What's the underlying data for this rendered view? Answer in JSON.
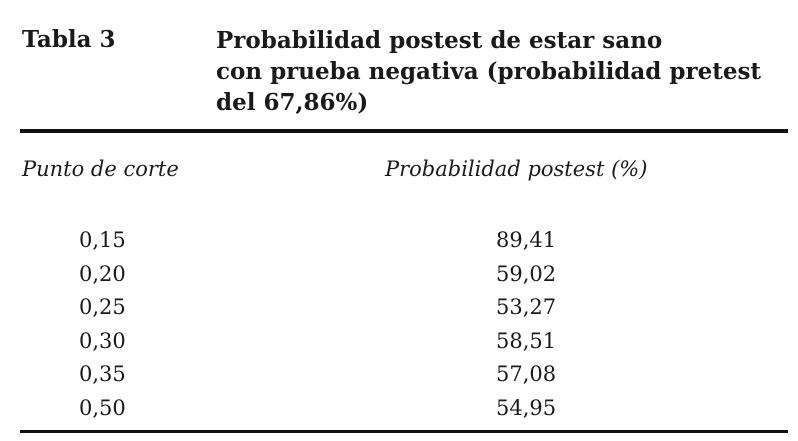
{
  "table": {
    "label": "Tabla 3",
    "title_lines": [
      "Probabilidad postest de estar sano",
      "con prueba negativa (probabilidad pretest",
      "del 67,86%)"
    ],
    "columns": [
      "Punto de corte",
      "Probabilidad postest (%)"
    ],
    "rows": [
      [
        "0,15",
        "89,41"
      ],
      [
        "0,20",
        "59,02"
      ],
      [
        "0,25",
        "53,27"
      ],
      [
        "0,30",
        "58,51"
      ],
      [
        "0,35",
        "57,08"
      ],
      [
        "0,50",
        "54,95"
      ]
    ]
  }
}
